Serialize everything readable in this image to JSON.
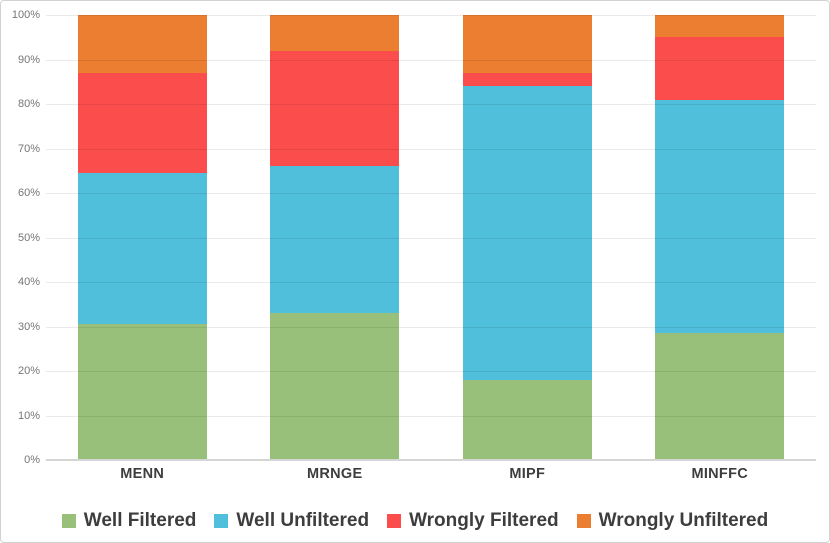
{
  "chart": {
    "background": "#FFFFFF",
    "border_color": "#D2D2D2",
    "gridline_color": "rgba(0,0,0,0.082)",
    "axis_line_color": "#D5D5D5",
    "tick_label_color": "#767676",
    "category_label_color": "#3D3D3D",
    "legend_text_color": "#3D3D3D"
  },
  "chart_data": {
    "type": "bar",
    "stacked": true,
    "percent_stacked": true,
    "title": "",
    "xlabel": "",
    "ylabel": "",
    "categories": [
      "MENN",
      "MRNGE",
      "MIPF",
      "MINFFC"
    ],
    "series": [
      {
        "name": "Well Filtered",
        "color": "#98C07B",
        "values": [
          30.5,
          33,
          18,
          28.5
        ]
      },
      {
        "name": "Well Unfiltered",
        "color": "#50BFDC",
        "values": [
          34,
          33,
          66,
          52.5
        ]
      },
      {
        "name": "Wrongly Filtered",
        "color": "#FC4D4D",
        "values": [
          22.5,
          26,
          3,
          14
        ]
      },
      {
        "name": "Wrongly Unfiltered",
        "color": "#EC7E31",
        "values": [
          13,
          8,
          13,
          5
        ]
      }
    ],
    "ylim": [
      0,
      100
    ],
    "ytick_labels": [
      "0%",
      "10%",
      "20%",
      "30%",
      "40%",
      "50%",
      "60%",
      "70%",
      "80%",
      "90%",
      "100%"
    ],
    "grid": true,
    "legend_position": "bottom"
  }
}
